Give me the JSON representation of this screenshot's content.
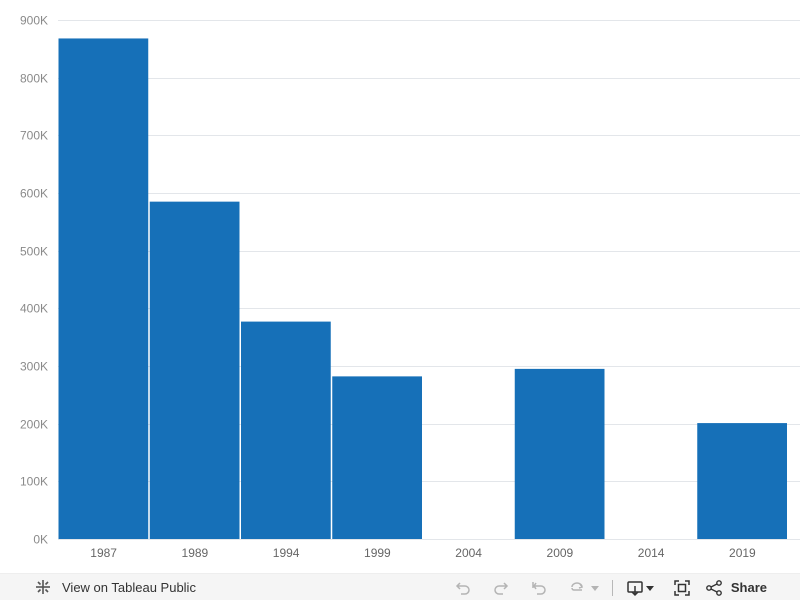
{
  "chart_data": {
    "type": "bar",
    "categories": [
      "1987",
      "1989",
      "1994",
      "1999",
      "2004",
      "2009",
      "2014",
      "2019"
    ],
    "values": [
      868000,
      585000,
      377000,
      282000,
      null,
      295000,
      null,
      201000
    ],
    "ylim": [
      0,
      900000
    ],
    "y_ticks": [
      0,
      100000,
      200000,
      300000,
      400000,
      500000,
      600000,
      700000,
      800000,
      900000
    ],
    "y_tick_labels": [
      "0K",
      "100K",
      "200K",
      "300K",
      "400K",
      "500K",
      "600K",
      "700K",
      "800K",
      "900K"
    ],
    "grid": true,
    "bar_color": "#1670b8"
  },
  "toolbar": {
    "view_label": "View on Tableau Public",
    "share_label": "Share",
    "icons": [
      "tableau-logo-icon",
      "undo-icon",
      "redo-icon",
      "revert-icon",
      "refresh-icon",
      "dropdown-icon",
      "download-icon",
      "fullscreen-icon",
      "share-icon"
    ],
    "icon_color_active": "#333333",
    "icon_color_disabled": "#b4b4b4"
  }
}
